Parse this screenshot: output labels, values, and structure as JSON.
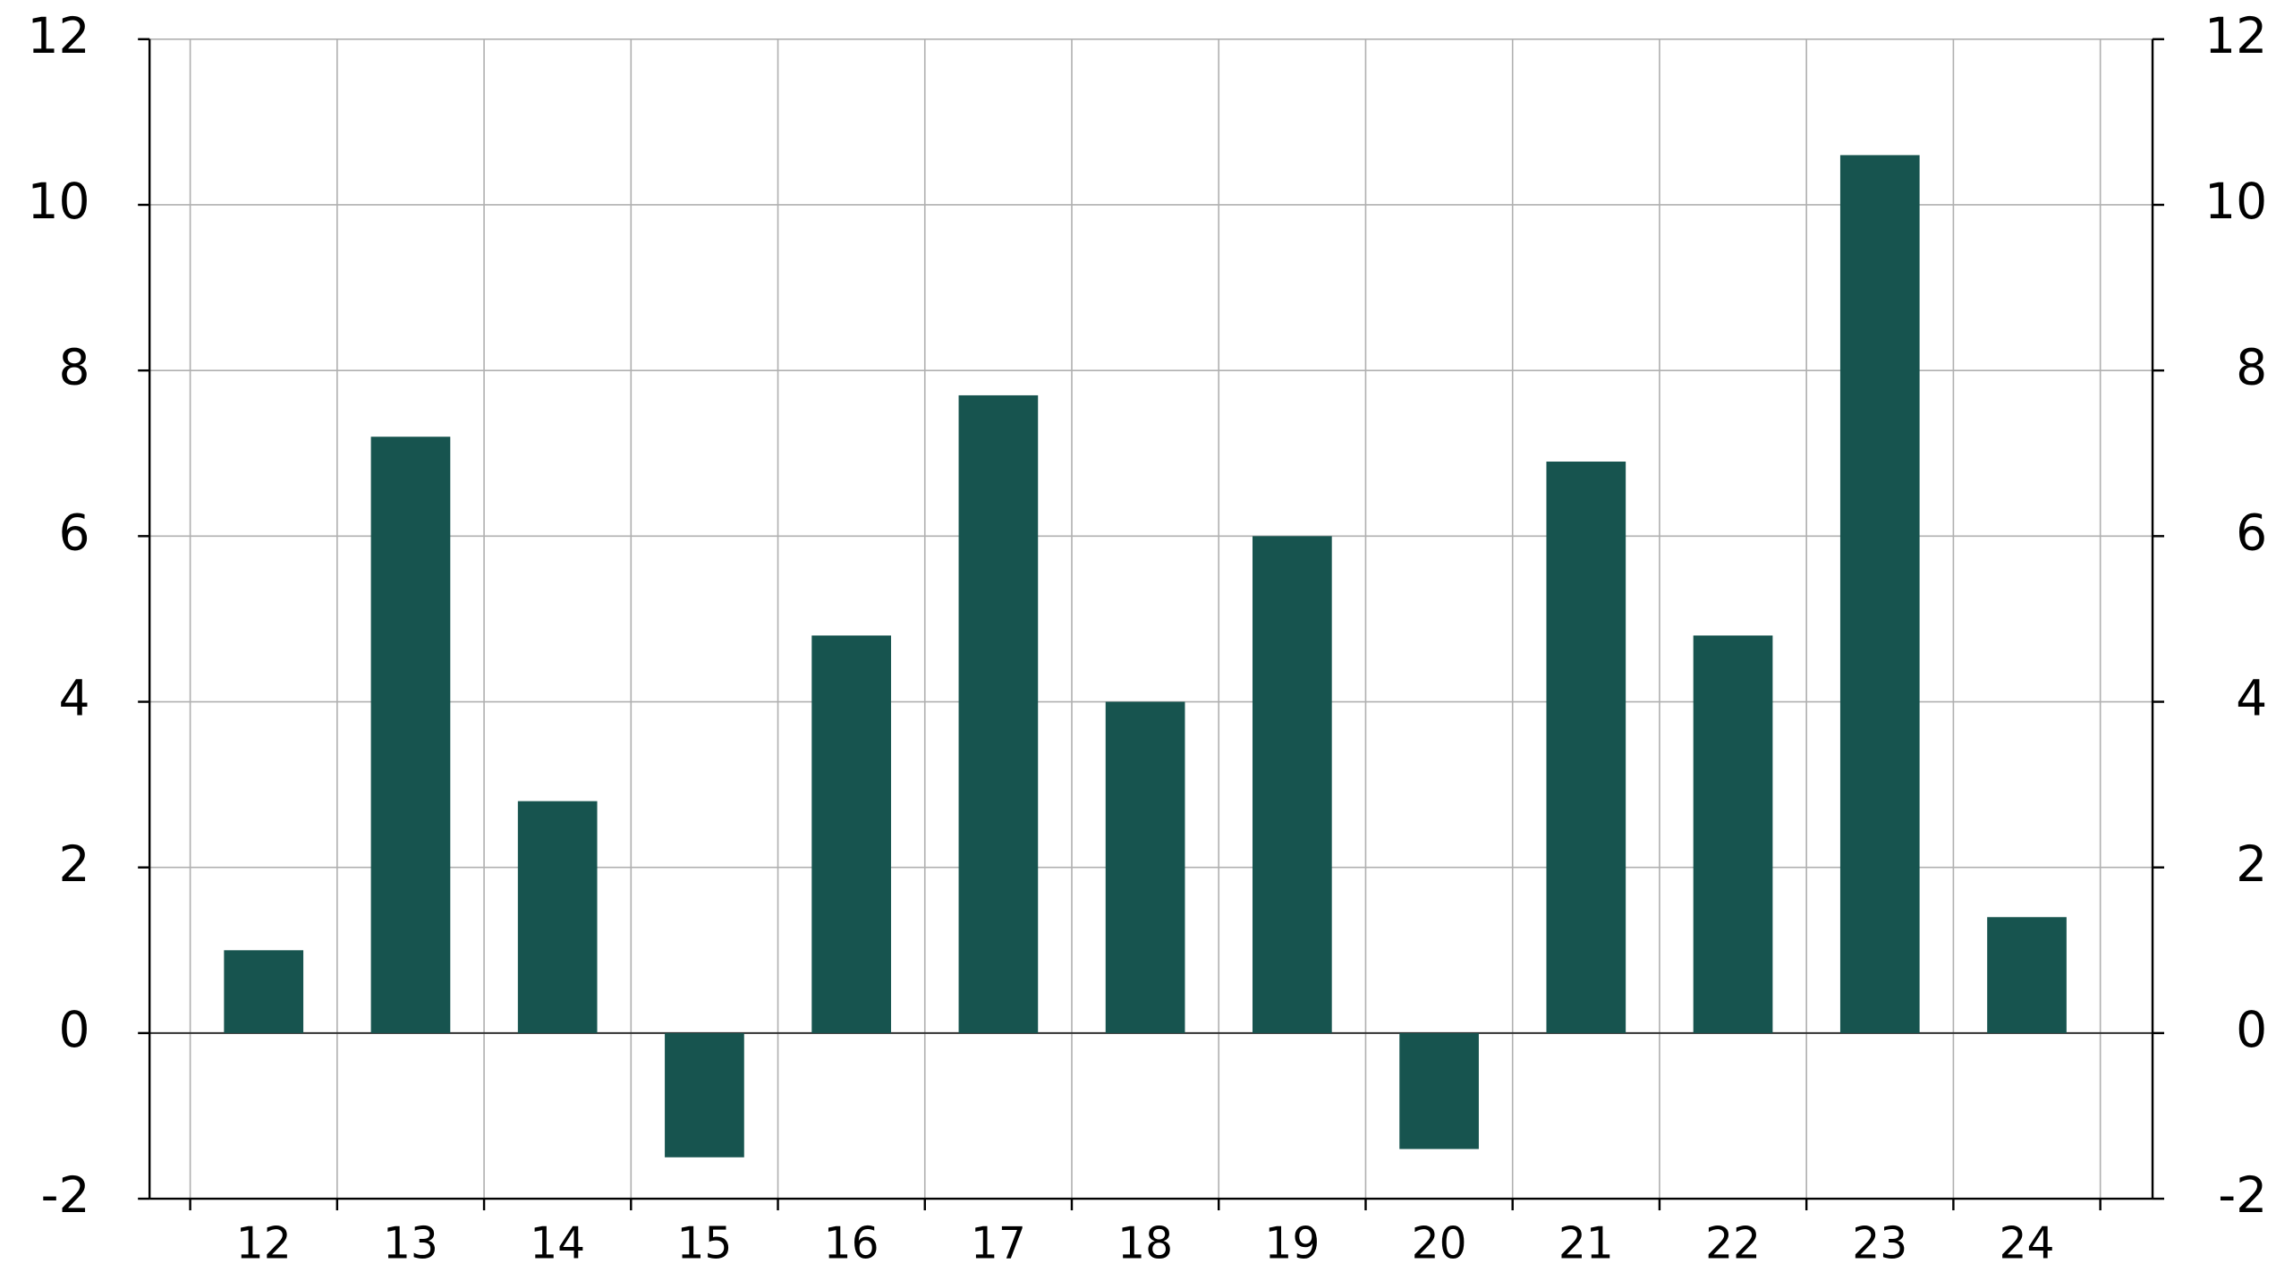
{
  "chart_data": {
    "type": "bar",
    "categories": [
      "12",
      "13",
      "14",
      "15",
      "16",
      "17",
      "18",
      "19",
      "20",
      "21",
      "22",
      "23",
      "24"
    ],
    "values": [
      1.0,
      7.2,
      2.8,
      -1.5,
      4.8,
      7.7,
      4.0,
      6.0,
      -1.4,
      6.9,
      4.8,
      10.6,
      1.4
    ],
    "color": "#17544f",
    "ylim": [
      -2,
      12
    ],
    "yticks": [
      -2,
      0,
      2,
      4,
      6,
      8,
      10,
      12
    ],
    "y2lim": [
      -2,
      12
    ],
    "y2ticks": [
      -2,
      0,
      2,
      4,
      6,
      8,
      10,
      12
    ],
    "grid": true
  }
}
